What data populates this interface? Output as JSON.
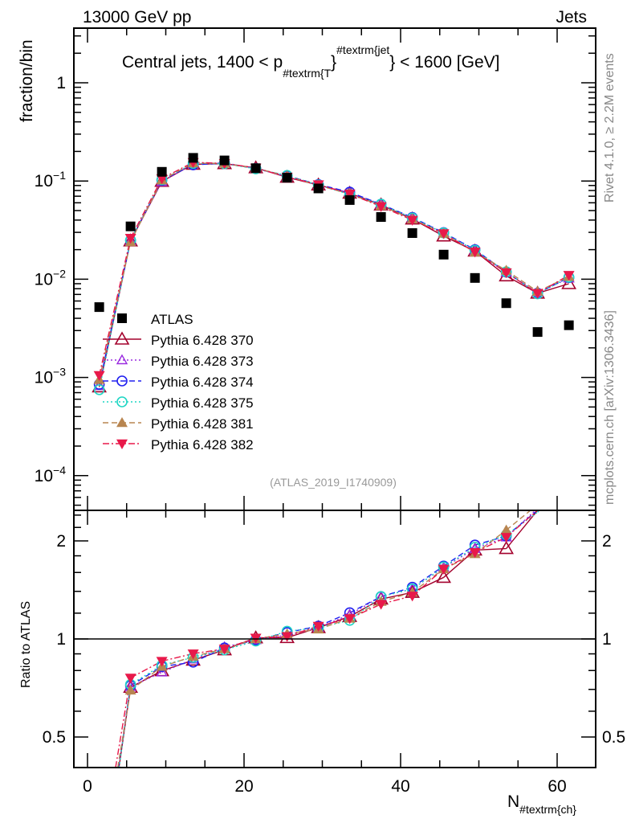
{
  "header": {
    "left": "13000 GeV pp",
    "right": "Jets"
  },
  "side_text": {
    "rivet": "Rivet 4.1.0, ≥ 2.2M events",
    "mcplots": "mcplots.cern.ch [arXiv:1306.3436]"
  },
  "chart_data": {
    "type": "scatter",
    "title": {
      "main": "Central jets, 1400 < p",
      "sub": "#textrm{T",
      "mid": "}",
      "sup": "#textrm{jet",
      "end": "} < 1600 [GeV]"
    },
    "analysis_label": "(ATLAS_2019_I1740909)",
    "ylabel": "fraction/bin",
    "ratio_ylabel": "Ratio to ATLAS",
    "xlabel": {
      "main": "N",
      "sub": "#textrm{ch}"
    },
    "xlim": [
      -1.85,
      64.8
    ],
    "ylim": [
      4.5e-05,
      3.6
    ],
    "yscale": "log",
    "ratio_ylim": [
      0.403,
      2.48
    ],
    "xticks": [
      {
        "v": 0,
        "label": "0"
      },
      {
        "v": 20,
        "label": "20"
      },
      {
        "v": 40,
        "label": "40"
      },
      {
        "v": 60,
        "label": "60"
      }
    ],
    "yticks": [
      {
        "v": 1,
        "base": "1",
        "exp": ""
      },
      {
        "v": 0.1,
        "base": "10",
        "exp": "−1"
      },
      {
        "v": 0.01,
        "base": "10",
        "exp": "−2"
      },
      {
        "v": 0.001,
        "base": "10",
        "exp": "−3"
      },
      {
        "v": 0.0001,
        "base": "10",
        "exp": "−4"
      }
    ],
    "ratio_yticks": [
      {
        "v": 2,
        "label": "2"
      },
      {
        "v": 1,
        "label": "1"
      },
      {
        "v": 0.5,
        "label": "0.5"
      }
    ],
    "legend_position": "center-left",
    "x": [
      1.5,
      5.5,
      9.5,
      13.5,
      17.5,
      21.5,
      25.5,
      29.5,
      33.5,
      37.5,
      41.5,
      45.5,
      49.5,
      53.5,
      57.5,
      61.5
    ],
    "reference": {
      "name": "ATLAS",
      "color": "#000000",
      "marker": "square",
      "values": [
        0.0052,
        0.0345,
        0.124,
        0.172,
        0.162,
        0.135,
        0.108,
        0.084,
        0.064,
        0.043,
        0.0295,
        0.0178,
        0.0103,
        0.0057,
        0.0029,
        0.0034
      ]
    },
    "series": [
      {
        "name": "Pythia 6.428 370",
        "color": "#a3002c",
        "marker": "triangle-open",
        "line": "solid",
        "values": [
          0.0008,
          0.0245,
          0.099,
          0.148,
          0.15,
          0.136,
          0.109,
          0.091,
          0.075,
          0.057,
          0.041,
          0.0275,
          0.0193,
          0.0108,
          0.0072,
          0.009
        ]
      },
      {
        "name": "Pythia 6.428 373",
        "color": "#9a2be0",
        "marker": "triangle-open-small",
        "line": "dotted",
        "values": [
          0.00082,
          0.0246,
          0.098,
          0.149,
          0.153,
          0.134,
          0.111,
          0.091,
          0.076,
          0.058,
          0.042,
          0.0295,
          0.0195,
          0.0117,
          0.0073,
          0.0102
        ]
      },
      {
        "name": "Pythia 6.428 374",
        "color": "#2020f0",
        "marker": "circle-open",
        "line": "dashed",
        "values": [
          0.00085,
          0.0248,
          0.102,
          0.146,
          0.152,
          0.134,
          0.113,
          0.092,
          0.077,
          0.058,
          0.0425,
          0.0298,
          0.02,
          0.0118,
          0.0072,
          0.0104
        ]
      },
      {
        "name": "Pythia 6.428 375",
        "color": "#1fd6c4",
        "marker": "circle-open",
        "line": "dotted",
        "values": [
          0.00075,
          0.025,
          0.103,
          0.151,
          0.15,
          0.133,
          0.114,
          0.091,
          0.073,
          0.058,
          0.042,
          0.0296,
          0.0197,
          0.0119,
          0.0071,
          0.0105
        ]
      },
      {
        "name": "Pythia 6.428 381",
        "color": "#b88550",
        "marker": "triangle-filled",
        "line": "dashed",
        "values": [
          0.00095,
          0.024,
          0.102,
          0.152,
          0.151,
          0.135,
          0.112,
          0.09,
          0.074,
          0.056,
          0.041,
          0.0292,
          0.0188,
          0.0123,
          0.0075,
          0.0106
        ]
      },
      {
        "name": "Pythia 6.428 382",
        "color": "#e8194a",
        "marker": "triangle-down-filled",
        "line": "dashdot",
        "values": [
          0.00105,
          0.0262,
          0.106,
          0.155,
          0.151,
          0.136,
          0.11,
          0.092,
          0.074,
          0.055,
          0.04,
          0.0292,
          0.019,
          0.0117,
          0.0072,
          0.011
        ]
      }
    ]
  }
}
